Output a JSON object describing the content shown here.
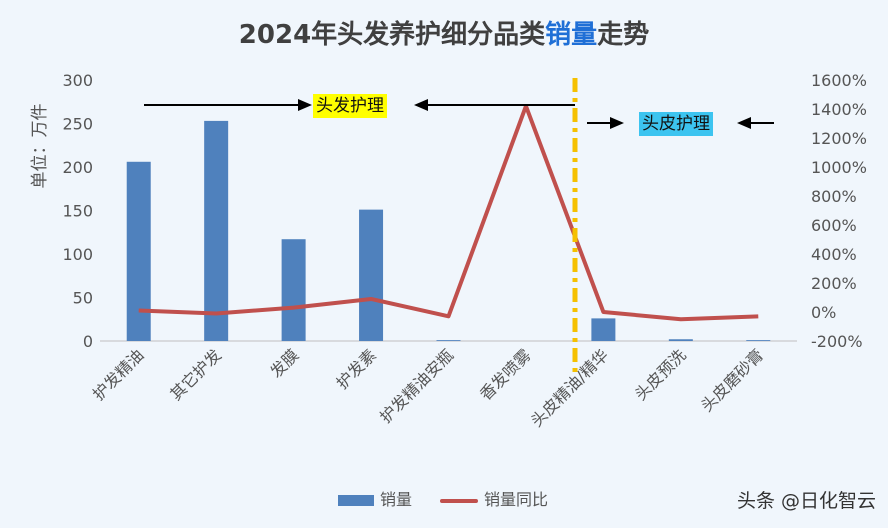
{
  "title_pre": "2024年头发养护细分品类",
  "title_hl": "销量",
  "title_post": "走势",
  "annotations": {
    "hair": "头发护理",
    "scalp": "头皮护理"
  },
  "watermark": "头条 @日化智云",
  "colors": {
    "bar": "#4f81bd",
    "line": "#c0504d",
    "divider": "#f5c000"
  },
  "chart_data": {
    "type": "bar",
    "categories": [
      "护发精油",
      "其它护发",
      "发膜",
      "护发素",
      "护发精油安瓶",
      "香发喷雾",
      "头皮精油/精华",
      "头皮预洗",
      "头皮磨砂膏"
    ],
    "series": [
      {
        "name": "销量",
        "type": "bar",
        "axis": "left",
        "values": [
          206,
          253,
          117,
          151,
          1,
          0,
          26,
          2,
          1
        ]
      },
      {
        "name": "销量同比",
        "type": "line",
        "axis": "right",
        "values": [
          10,
          -10,
          30,
          90,
          -30,
          1420,
          0,
          -50,
          -30
        ]
      }
    ],
    "ylabel": "单位：万件",
    "ylim": [
      0,
      300
    ],
    "yticks": [
      "0",
      "50",
      "100",
      "150",
      "200",
      "250",
      "300"
    ],
    "y2lim": [
      -200,
      1600
    ],
    "y2ticks": [
      "-200%",
      "0%",
      "200%",
      "400%",
      "600%",
      "800%",
      "1000%",
      "1200%",
      "1400%",
      "1600%"
    ],
    "legend_position": "bottom"
  }
}
